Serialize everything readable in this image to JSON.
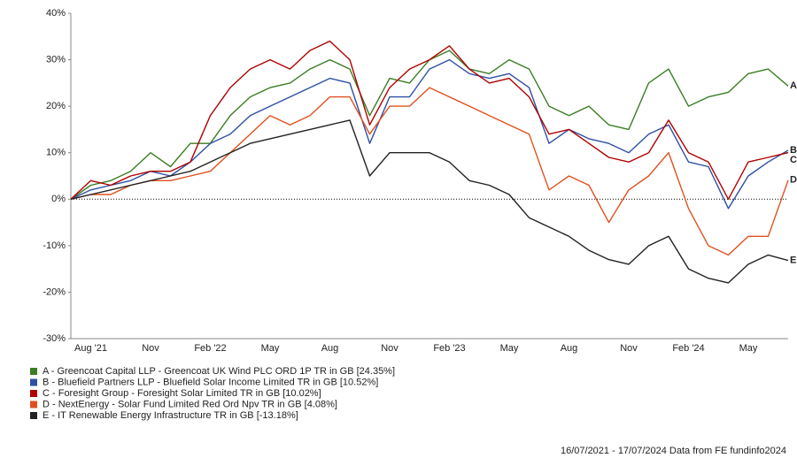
{
  "chart_data": {
    "type": "line",
    "categories": [
      null,
      "Aug '21",
      null,
      null,
      "Nov",
      null,
      null,
      "Feb '22",
      null,
      null,
      "May",
      null,
      null,
      "Aug",
      null,
      null,
      "Nov",
      null,
      null,
      "Feb '23",
      null,
      null,
      "May",
      null,
      null,
      "Aug",
      null,
      null,
      "Nov",
      null,
      null,
      "Feb '24",
      null,
      null,
      "May",
      null,
      null
    ],
    "ylim": [
      -30,
      40
    ],
    "yticks": [
      {
        "value": -30,
        "label": "-30%"
      },
      {
        "value": -20,
        "label": "-20%"
      },
      {
        "value": -10,
        "label": "-10%"
      },
      {
        "value": 0,
        "label": "0%"
      },
      {
        "value": 10,
        "label": "10%"
      },
      {
        "value": 20,
        "label": "20%"
      },
      {
        "value": 30,
        "label": "30%"
      },
      {
        "value": 40,
        "label": "40%"
      }
    ],
    "series": [
      {
        "name": "A - Greencoat Capital LLP - Greencoat UK Wind PLC ORD 1P TR in GB [24.35%]",
        "tag": "A",
        "color": "#3a7d23",
        "values": [
          0,
          3,
          4,
          6,
          10,
          7,
          12,
          12,
          18,
          22,
          24,
          25,
          28,
          30,
          28,
          18,
          26,
          25,
          30,
          32,
          28,
          27,
          30,
          28,
          20,
          18,
          20,
          16,
          15,
          25,
          28,
          20,
          22,
          23,
          27,
          28,
          24.35
        ]
      },
      {
        "name": "B - Bluefield Partners LLP - Bluefield Solar Income Limited TR in GB [10.52%]",
        "tag": "B",
        "color": "#2e4fa3",
        "values": [
          0,
          2,
          3,
          4,
          6,
          5,
          8,
          12,
          14,
          18,
          20,
          22,
          24,
          26,
          25,
          12,
          22,
          22,
          28,
          30,
          27,
          26,
          27,
          24,
          12,
          15,
          13,
          12,
          10,
          14,
          16,
          8,
          7,
          -2,
          5,
          8,
          10.52
        ]
      },
      {
        "name": "C - Foresight Group - Foresight Solar Limited TR in GB [10.02%]",
        "tag": "C",
        "color": "#b00000",
        "values": [
          0,
          4,
          3,
          5,
          6,
          6,
          8,
          18,
          24,
          28,
          30,
          28,
          32,
          34,
          30,
          16,
          24,
          28,
          30,
          33,
          28,
          25,
          26,
          22,
          14,
          15,
          12,
          9,
          8,
          10,
          17,
          10,
          8,
          0,
          8,
          9,
          10.02
        ]
      },
      {
        "name": "D - NextEnergy - Solar Fund Limited Red Ord Npv TR in GB [4.08%]",
        "tag": "D",
        "color": "#e0501e",
        "values": [
          0,
          1,
          1,
          3,
          4,
          4,
          5,
          6,
          10,
          14,
          18,
          16,
          18,
          22,
          22,
          14,
          20,
          20,
          24,
          22,
          20,
          18,
          16,
          14,
          2,
          5,
          3,
          -5,
          2,
          5,
          10,
          -2,
          -10,
          -12,
          -8,
          -8,
          4.08
        ]
      },
      {
        "name": "E - IT Renewable Energy Infrastructure TR in GB [-13.18%]",
        "tag": "E",
        "color": "#222222",
        "values": [
          0,
          1,
          2,
          3,
          4,
          5,
          6,
          8,
          10,
          12,
          13,
          14,
          15,
          16,
          17,
          5,
          10,
          10,
          10,
          8,
          4,
          3,
          1,
          -4,
          -6,
          -8,
          -11,
          -13,
          -14,
          -10,
          -8,
          -15,
          -17,
          -18,
          -14,
          -12,
          -13.18
        ]
      }
    ],
    "footer": "16/07/2021 - 17/07/2024 Data from FE fundinfo2024"
  }
}
